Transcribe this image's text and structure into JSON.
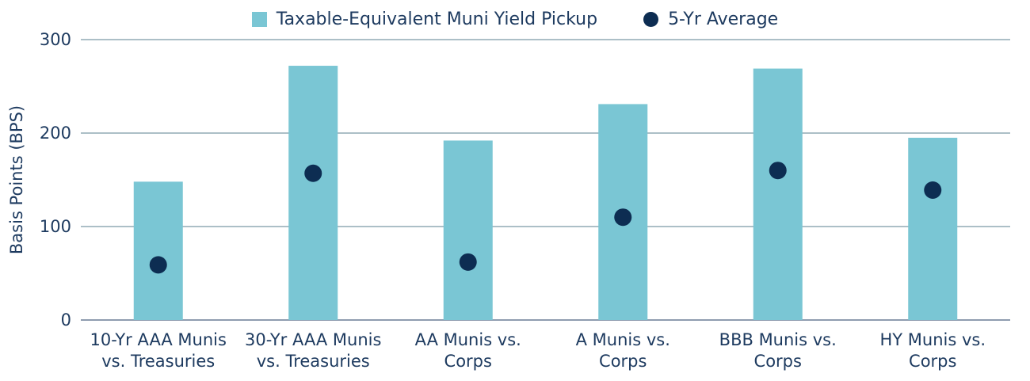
{
  "chart_data": {
    "type": "bar",
    "categories": [
      [
        "10-Yr AAA Munis",
        "vs. Treasuries"
      ],
      [
        "30-Yr AAA Munis",
        "vs. Treasuries"
      ],
      [
        "AA Munis vs.",
        "Corps"
      ],
      [
        "A Munis vs.",
        "Corps"
      ],
      [
        "BBB Munis vs.",
        "Corps"
      ],
      [
        "HY Munis vs.",
        "Corps"
      ]
    ],
    "series": [
      {
        "name": "Taxable-Equivalent Muni Yield Pickup",
        "kind": "bar",
        "color": "#7ac6d4",
        "values": [
          148,
          272,
          192,
          231,
          269,
          195
        ]
      },
      {
        "name": "5-Yr Average",
        "kind": "dot",
        "color": "#0d2d52",
        "values": [
          59,
          157,
          62,
          110,
          160,
          139
        ]
      }
    ],
    "ylabel": "Basis Points (BPS)",
    "ylim": [
      0,
      300
    ],
    "yticks": [
      0,
      100,
      200,
      300
    ],
    "grid": true,
    "legend": "top-center"
  }
}
